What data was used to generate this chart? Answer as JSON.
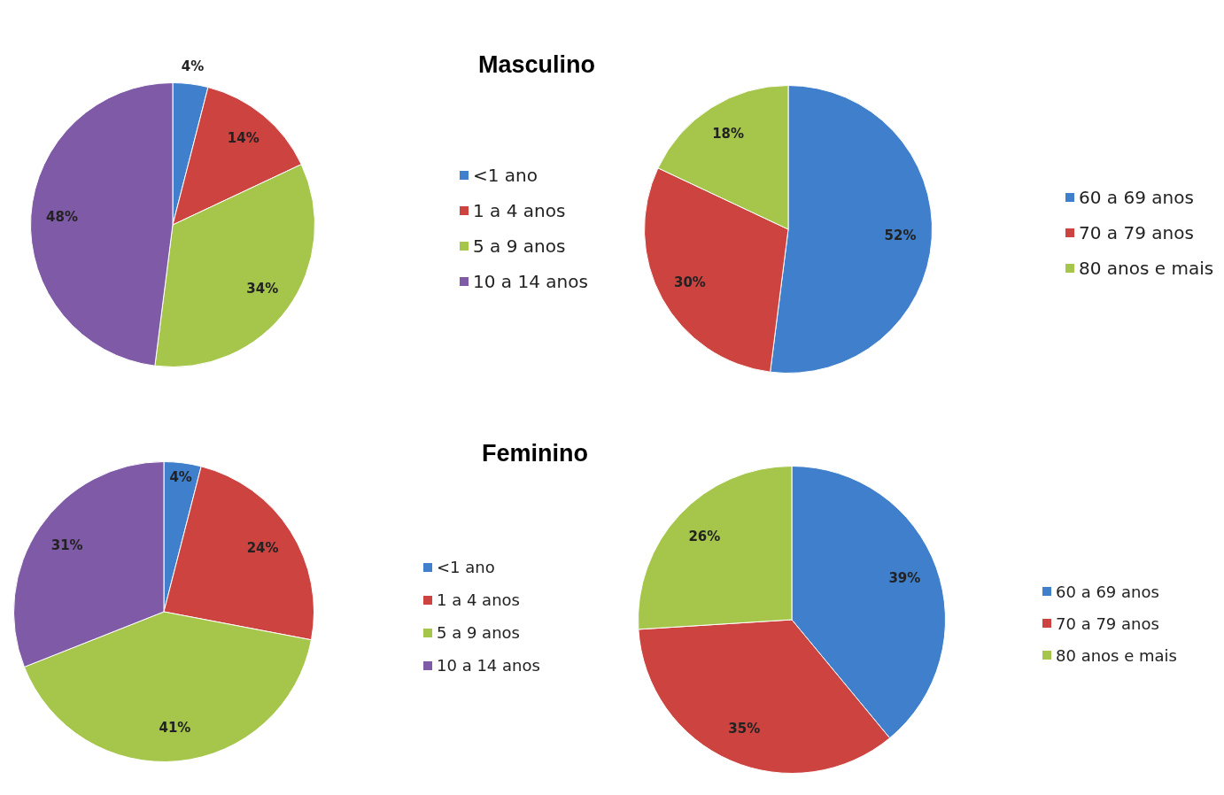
{
  "chart_data": [
    {
      "type": "pie",
      "title": "Masculino",
      "categories": [
        "<1 ano",
        "1 a 4 anos",
        "5 a 9 anos",
        "10 a 14 anos"
      ],
      "values": [
        4,
        14,
        34,
        48
      ],
      "value_labels": [
        "4%",
        "14%",
        "34%",
        "48%"
      ],
      "colors": [
        "#3f7fcb",
        "#cc4340",
        "#a5c64b",
        "#7f5aa6"
      ],
      "legend": "right"
    },
    {
      "type": "pie",
      "categories": [
        "60 a 69 anos",
        "70 a 79 anos",
        "80 anos e mais"
      ],
      "values": [
        52,
        30,
        18
      ],
      "value_labels": [
        "52%",
        "30%",
        "18%"
      ],
      "colors": [
        "#3f7fcb",
        "#cc4340",
        "#a5c64b"
      ],
      "legend": "right"
    },
    {
      "type": "pie",
      "title": "Feminino",
      "categories": [
        "<1 ano",
        "1 a 4 anos",
        "5 a 9 anos",
        "10 a 14 anos"
      ],
      "values": [
        4,
        24,
        41,
        31
      ],
      "value_labels": [
        "4%",
        "24%",
        "41%",
        "31%"
      ],
      "colors": [
        "#3f7fcb",
        "#cc4340",
        "#a5c64b",
        "#7f5aa6"
      ],
      "legend": "right"
    },
    {
      "type": "pie",
      "categories": [
        "60 a 69 anos",
        "70 a 79 anos",
        "80 anos e mais"
      ],
      "values": [
        39,
        35,
        26
      ],
      "value_labels": [
        "39%",
        "35%",
        "26%"
      ],
      "colors": [
        "#3f7fcb",
        "#cc4340",
        "#a5c64b"
      ],
      "legend": "right"
    }
  ]
}
